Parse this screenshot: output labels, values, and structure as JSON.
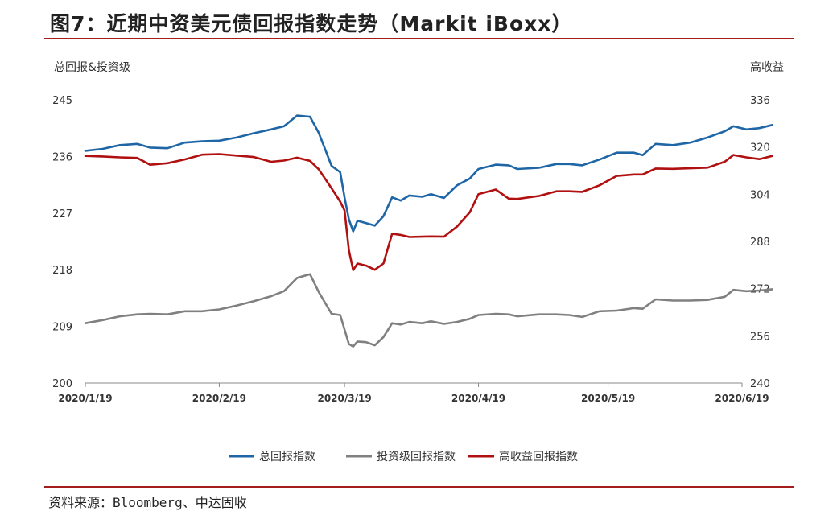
{
  "title": "图7：近期中资美元债回报指数走势（Markit iBoxx）",
  "source": "资料来源：Bloomberg、中达固收",
  "chart_data": {
    "type": "line",
    "left_axis_title": "总回报&投资级",
    "right_axis_title": "高收益",
    "y_left": {
      "ticks": [
        200,
        209,
        218,
        227,
        236,
        245
      ],
      "range": [
        200,
        245
      ]
    },
    "y_right": {
      "ticks": [
        240,
        256,
        272,
        288,
        304,
        320,
        336
      ],
      "range": [
        240,
        336
      ]
    },
    "x_range": [
      "2020-01-19",
      "2020-06-19"
    ],
    "x_ticks": [
      "2020/1/19",
      "2020/2/19",
      "2020/3/19",
      "2020/4/19",
      "2020/5/19",
      "2020/6/19"
    ],
    "grid": false,
    "legend_position": "bottom",
    "series": [
      {
        "name": "总回报指数",
        "axis": "left",
        "color": "#1f66a6",
        "points": [
          [
            "2020-01-19",
            236.9
          ],
          [
            "2020-01-23",
            237.2
          ],
          [
            "2020-01-27",
            237.8
          ],
          [
            "2020-01-31",
            238.0
          ],
          [
            "2020-02-03",
            237.4
          ],
          [
            "2020-02-07",
            237.3
          ],
          [
            "2020-02-11",
            238.2
          ],
          [
            "2020-02-15",
            238.4
          ],
          [
            "2020-02-19",
            238.5
          ],
          [
            "2020-02-23",
            239.0
          ],
          [
            "2020-02-27",
            239.7
          ],
          [
            "2020-03-02",
            240.3
          ],
          [
            "2020-03-05",
            240.8
          ],
          [
            "2020-03-08",
            242.5
          ],
          [
            "2020-03-11",
            242.3
          ],
          [
            "2020-03-13",
            239.8
          ],
          [
            "2020-03-16",
            234.5
          ],
          [
            "2020-03-18",
            233.5
          ],
          [
            "2020-03-19",
            229.5
          ],
          [
            "2020-03-20",
            226.0
          ],
          [
            "2020-03-21",
            224.1
          ],
          [
            "2020-03-22",
            225.8
          ],
          [
            "2020-03-24",
            225.4
          ],
          [
            "2020-03-26",
            225.0
          ],
          [
            "2020-03-28",
            226.5
          ],
          [
            "2020-03-30",
            229.5
          ],
          [
            "2020-04-01",
            229.0
          ],
          [
            "2020-04-03",
            229.8
          ],
          [
            "2020-04-06",
            229.6
          ],
          [
            "2020-04-08",
            230.0
          ],
          [
            "2020-04-11",
            229.4
          ],
          [
            "2020-04-14",
            231.4
          ],
          [
            "2020-04-17",
            232.5
          ],
          [
            "2020-04-19",
            234.0
          ],
          [
            "2020-04-23",
            234.7
          ],
          [
            "2020-04-26",
            234.6
          ],
          [
            "2020-04-28",
            234.0
          ],
          [
            "2020-05-03",
            234.2
          ],
          [
            "2020-05-07",
            234.8
          ],
          [
            "2020-05-10",
            234.8
          ],
          [
            "2020-05-13",
            234.6
          ],
          [
            "2020-05-17",
            235.5
          ],
          [
            "2020-05-21",
            236.6
          ],
          [
            "2020-05-25",
            236.6
          ],
          [
            "2020-05-27",
            236.2
          ],
          [
            "2020-05-30",
            238.0
          ],
          [
            "2020-06-03",
            237.8
          ],
          [
            "2020-06-07",
            238.2
          ],
          [
            "2020-06-11",
            239.0
          ],
          [
            "2020-06-15",
            240.0
          ],
          [
            "2020-06-17",
            240.8
          ],
          [
            "2020-06-20",
            240.3
          ],
          [
            "2020-06-23",
            240.5
          ],
          [
            "2020-06-26",
            241.0
          ]
        ]
      },
      {
        "name": "投资级回报指数",
        "axis": "left",
        "color": "#808080",
        "points": [
          [
            "2020-01-19",
            209.5
          ],
          [
            "2020-01-23",
            210.0
          ],
          [
            "2020-01-27",
            210.6
          ],
          [
            "2020-01-31",
            210.9
          ],
          [
            "2020-02-03",
            211.0
          ],
          [
            "2020-02-07",
            210.9
          ],
          [
            "2020-02-11",
            211.4
          ],
          [
            "2020-02-15",
            211.4
          ],
          [
            "2020-02-19",
            211.7
          ],
          [
            "2020-02-23",
            212.3
          ],
          [
            "2020-02-27",
            213.0
          ],
          [
            "2020-03-02",
            213.8
          ],
          [
            "2020-03-05",
            214.6
          ],
          [
            "2020-03-08",
            216.7
          ],
          [
            "2020-03-11",
            217.3
          ],
          [
            "2020-03-13",
            214.5
          ],
          [
            "2020-03-16",
            211.0
          ],
          [
            "2020-03-18",
            210.8
          ],
          [
            "2020-03-19",
            208.5
          ],
          [
            "2020-03-20",
            206.2
          ],
          [
            "2020-03-21",
            205.8
          ],
          [
            "2020-03-22",
            206.6
          ],
          [
            "2020-03-24",
            206.5
          ],
          [
            "2020-03-26",
            206.0
          ],
          [
            "2020-03-28",
            207.3
          ],
          [
            "2020-03-30",
            209.5
          ],
          [
            "2020-04-01",
            209.3
          ],
          [
            "2020-04-03",
            209.7
          ],
          [
            "2020-04-06",
            209.5
          ],
          [
            "2020-04-08",
            209.8
          ],
          [
            "2020-04-11",
            209.4
          ],
          [
            "2020-04-14",
            209.7
          ],
          [
            "2020-04-17",
            210.2
          ],
          [
            "2020-04-19",
            210.8
          ],
          [
            "2020-04-23",
            211.0
          ],
          [
            "2020-04-26",
            210.9
          ],
          [
            "2020-04-28",
            210.6
          ],
          [
            "2020-05-03",
            210.9
          ],
          [
            "2020-05-07",
            210.9
          ],
          [
            "2020-05-10",
            210.8
          ],
          [
            "2020-05-13",
            210.5
          ],
          [
            "2020-05-17",
            211.4
          ],
          [
            "2020-05-21",
            211.5
          ],
          [
            "2020-05-25",
            211.9
          ],
          [
            "2020-05-27",
            211.8
          ],
          [
            "2020-05-30",
            213.3
          ],
          [
            "2020-06-03",
            213.1
          ],
          [
            "2020-06-07",
            213.1
          ],
          [
            "2020-06-11",
            213.2
          ],
          [
            "2020-06-15",
            213.7
          ],
          [
            "2020-06-17",
            214.8
          ],
          [
            "2020-06-20",
            214.6
          ],
          [
            "2020-06-23",
            214.7
          ],
          [
            "2020-06-26",
            214.9
          ]
        ]
      },
      {
        "name": "高收益回报指数",
        "axis": "right",
        "color": "#b01010",
        "points": [
          [
            "2020-01-19",
            317.0
          ],
          [
            "2020-01-23",
            316.8
          ],
          [
            "2020-01-27",
            316.5
          ],
          [
            "2020-01-31",
            316.3
          ],
          [
            "2020-02-03",
            314.0
          ],
          [
            "2020-02-07",
            314.5
          ],
          [
            "2020-02-11",
            315.8
          ],
          [
            "2020-02-15",
            317.4
          ],
          [
            "2020-02-19",
            317.6
          ],
          [
            "2020-02-23",
            317.1
          ],
          [
            "2020-02-27",
            316.6
          ],
          [
            "2020-03-02",
            315.0
          ],
          [
            "2020-03-05",
            315.4
          ],
          [
            "2020-03-08",
            316.4
          ],
          [
            "2020-03-11",
            315.3
          ],
          [
            "2020-03-13",
            312.5
          ],
          [
            "2020-03-16",
            306.0
          ],
          [
            "2020-03-18",
            301.5
          ],
          [
            "2020-03-19",
            298.5
          ],
          [
            "2020-03-20",
            285.0
          ],
          [
            "2020-03-21",
            278.3
          ],
          [
            "2020-03-22",
            280.5
          ],
          [
            "2020-03-24",
            279.8
          ],
          [
            "2020-03-26",
            278.4
          ],
          [
            "2020-03-28",
            280.5
          ],
          [
            "2020-03-30",
            290.6
          ],
          [
            "2020-04-01",
            290.2
          ],
          [
            "2020-04-03",
            289.5
          ],
          [
            "2020-04-06",
            289.6
          ],
          [
            "2020-04-08",
            289.7
          ],
          [
            "2020-04-11",
            289.6
          ],
          [
            "2020-04-14",
            293.0
          ],
          [
            "2020-04-17",
            297.9
          ],
          [
            "2020-04-19",
            304.0
          ],
          [
            "2020-04-23",
            305.6
          ],
          [
            "2020-04-26",
            302.5
          ],
          [
            "2020-04-28",
            302.4
          ],
          [
            "2020-05-03",
            303.4
          ],
          [
            "2020-05-07",
            305.0
          ],
          [
            "2020-05-10",
            305.0
          ],
          [
            "2020-05-13",
            304.8
          ],
          [
            "2020-05-17",
            307.0
          ],
          [
            "2020-05-21",
            310.2
          ],
          [
            "2020-05-25",
            310.7
          ],
          [
            "2020-05-27",
            310.7
          ],
          [
            "2020-05-30",
            312.7
          ],
          [
            "2020-06-03",
            312.6
          ],
          [
            "2020-06-07",
            312.8
          ],
          [
            "2020-06-11",
            313.0
          ],
          [
            "2020-06-15",
            315.0
          ],
          [
            "2020-06-17",
            317.3
          ],
          [
            "2020-06-20",
            316.5
          ],
          [
            "2020-06-23",
            315.9
          ],
          [
            "2020-06-26",
            317.0
          ]
        ]
      }
    ]
  }
}
